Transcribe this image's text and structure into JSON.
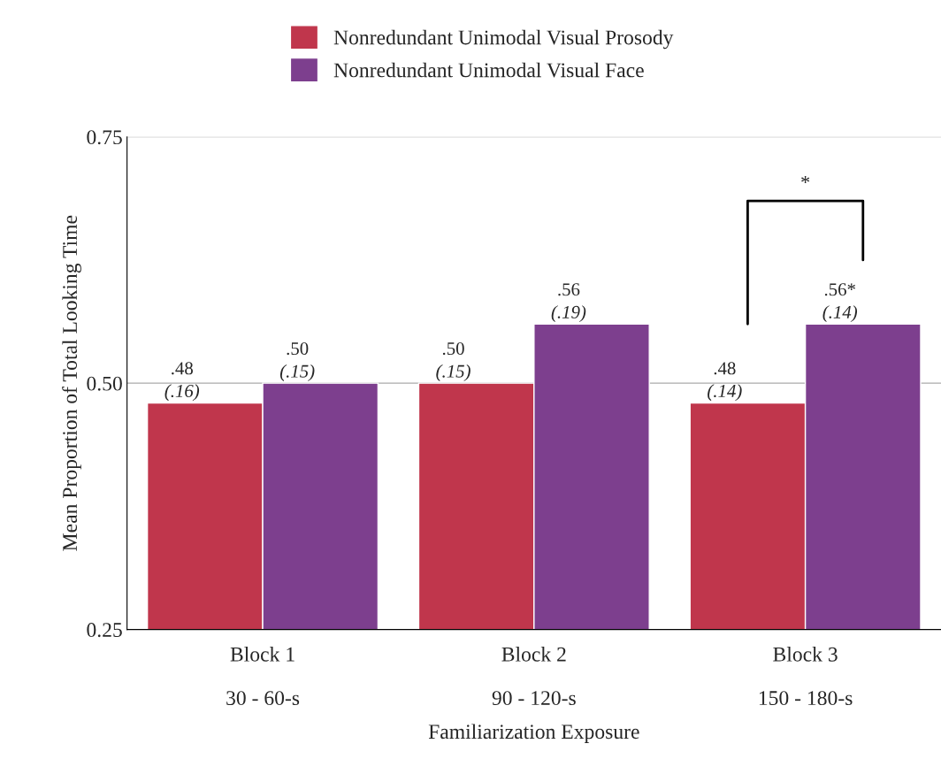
{
  "chart_data": {
    "type": "bar",
    "categories": [
      "Block 1\n\n30 - 60-s",
      "Block 2\n\n90 - 120-s",
      "Block 3\n\n150 - 180-s"
    ],
    "series": [
      {
        "name": "Nonredundant Unimodal Visual Prosody",
        "color": "#c0364c",
        "values": [
          0.48,
          0.5,
          0.48
        ],
        "value_labels": [
          ".48\n(.16)",
          ".50\n(.15)",
          ".48\n(.14)"
        ]
      },
      {
        "name": "Nonredundant Unimodal Visual Face",
        "color": "#7d3f8e",
        "values": [
          0.5,
          0.56,
          0.56
        ],
        "value_labels": [
          ".50\n(.15)",
          ".56\n(.19)",
          ".56*\n(.14)"
        ]
      }
    ],
    "xlabel": "Familiarization Exposure",
    "ylabel": "Mean Proportion of Total Looking Time",
    "ylim": [
      0.25,
      0.75
    ],
    "yticks": [
      {
        "value": 0.25,
        "label": "0.25"
      },
      {
        "value": 0.5,
        "label": "0.50"
      },
      {
        "value": 0.75,
        "label": "0.75"
      }
    ],
    "grid": "y",
    "legend": "top",
    "annotations": [
      "*"
    ]
  }
}
